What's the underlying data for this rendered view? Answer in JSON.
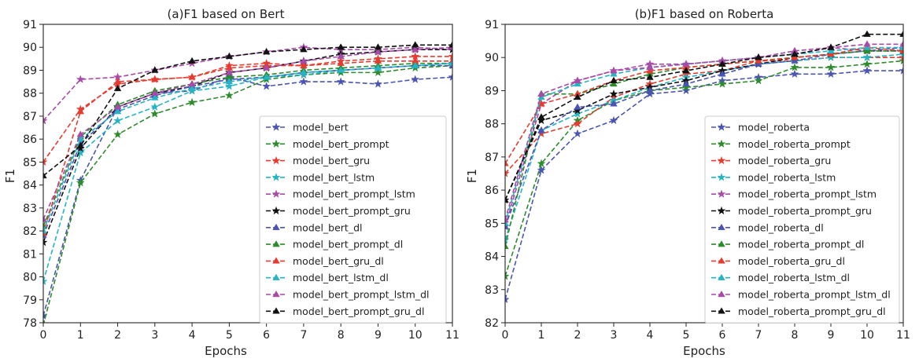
{
  "chart_data": [
    {
      "type": "line",
      "title": "(a)F1 based on Bert",
      "xlabel": "Epochs",
      "ylabel": "F1",
      "xlim": [
        0,
        11
      ],
      "ylim": [
        78,
        91
      ],
      "x": [
        0,
        1,
        2,
        3,
        4,
        5,
        6,
        7,
        8,
        9,
        10,
        11
      ],
      "xticks": [
        "0",
        "1",
        "2",
        "3",
        "4",
        "5",
        "6",
        "7",
        "8",
        "9",
        "10",
        "11"
      ],
      "yticks": [
        "78",
        "79",
        "80",
        "81",
        "82",
        "83",
        "84",
        "85",
        "86",
        "87",
        "88",
        "89",
        "90",
        "91"
      ],
      "grid": false,
      "legend_position": "lower-right",
      "series": [
        {
          "name": "model_bert",
          "color": "#4a54b4",
          "marker": "star",
          "values": [
            78.3,
            84.2,
            87.4,
            88.0,
            88.1,
            88.7,
            88.3,
            88.5,
            88.5,
            88.4,
            88.6,
            88.7
          ]
        },
        {
          "name": "model_bert_prompt",
          "color": "#2c8c2c",
          "marker": "star",
          "values": [
            77.9,
            84.1,
            86.2,
            87.1,
            87.6,
            87.9,
            88.6,
            88.8,
            88.9,
            88.9,
            89.1,
            89.2
          ]
        },
        {
          "name": "model_bert_gru",
          "color": "#e63b2e",
          "marker": "star",
          "values": [
            85.0,
            87.3,
            88.4,
            88.6,
            88.7,
            89.2,
            89.3,
            89.2,
            89.4,
            89.5,
            89.6,
            89.6
          ]
        },
        {
          "name": "model_bert_lstm",
          "color": "#26b4c4",
          "marker": "star",
          "values": [
            79.8,
            85.4,
            86.8,
            87.4,
            88.1,
            88.3,
            88.7,
            88.8,
            89.0,
            89.1,
            89.2,
            89.3
          ]
        },
        {
          "name": "model_bert_prompt_lstm",
          "color": "#a84aa8",
          "marker": "star",
          "values": [
            86.8,
            88.6,
            88.7,
            89.0,
            89.3,
            89.6,
            89.8,
            90.0,
            89.9,
            89.9,
            90.0,
            89.9
          ]
        },
        {
          "name": "model_bert_prompt_gru",
          "color": "#111111",
          "marker": "star",
          "values": [
            81.5,
            85.6,
            87.4,
            88.0,
            88.3,
            88.9,
            89.1,
            89.4,
            89.7,
            89.8,
            89.9,
            89.9
          ]
        },
        {
          "name": "model_bert_dl",
          "color": "#4a54b4",
          "marker": "triangle",
          "values": [
            81.8,
            85.8,
            87.3,
            87.9,
            88.3,
            88.6,
            88.7,
            88.9,
            89.0,
            89.1,
            89.2,
            89.2
          ]
        },
        {
          "name": "model_bert_prompt_dl",
          "color": "#2c8c2c",
          "marker": "triangle",
          "values": [
            82.2,
            86.1,
            87.5,
            88.1,
            88.4,
            88.7,
            88.8,
            89.0,
            89.1,
            89.2,
            89.3,
            89.3
          ]
        },
        {
          "name": "model_bert_gru_dl",
          "color": "#e63b2e",
          "marker": "triangle",
          "values": [
            81.9,
            87.2,
            88.5,
            88.6,
            88.7,
            89.1,
            89.2,
            89.2,
            89.3,
            89.4,
            89.4,
            89.4
          ]
        },
        {
          "name": "model_bert_lstm_dl",
          "color": "#26b4c4",
          "marker": "triangle",
          "values": [
            82.0,
            86.0,
            87.2,
            87.8,
            88.2,
            88.5,
            88.7,
            88.9,
            89.0,
            89.1,
            89.2,
            89.3
          ]
        },
        {
          "name": "model_bert_prompt_lstm_dl",
          "color": "#a84aa8",
          "marker": "triangle",
          "values": [
            82.5,
            86.2,
            87.4,
            88.0,
            88.4,
            88.9,
            89.1,
            89.4,
            89.6,
            89.8,
            89.9,
            90.0
          ]
        },
        {
          "name": "model_bert_prompt_gru_dl",
          "color": "#111111",
          "marker": "triangle",
          "values": [
            84.4,
            85.7,
            88.2,
            89.0,
            89.4,
            89.6,
            89.8,
            89.9,
            90.0,
            90.0,
            90.1,
            90.1
          ]
        }
      ]
    },
    {
      "type": "line",
      "title": "(b)F1 based on Roberta",
      "xlabel": "Epochs",
      "ylabel": "F1",
      "xlim": [
        0,
        11
      ],
      "ylim": [
        82,
        91
      ],
      "x": [
        0,
        1,
        2,
        3,
        4,
        5,
        6,
        7,
        8,
        9,
        10,
        11
      ],
      "xticks": [
        "0",
        "1",
        "2",
        "3",
        "4",
        "5",
        "6",
        "7",
        "8",
        "9",
        "10",
        "11"
      ],
      "yticks": [
        "82",
        "83",
        "84",
        "85",
        "86",
        "87",
        "88",
        "89",
        "90",
        "91"
      ],
      "grid": false,
      "legend_position": "lower-right",
      "series": [
        {
          "name": "model_roberta",
          "color": "#4a54b4",
          "marker": "star",
          "values": [
            82.7,
            86.6,
            87.7,
            88.1,
            88.9,
            89.0,
            89.3,
            89.4,
            89.5,
            89.5,
            89.6,
            89.6
          ]
        },
        {
          "name": "model_roberta_prompt",
          "color": "#2c8c2c",
          "marker": "star",
          "values": [
            83.4,
            86.8,
            88.1,
            88.7,
            89.0,
            89.1,
            89.2,
            89.3,
            89.7,
            89.7,
            89.8,
            89.9
          ]
        },
        {
          "name": "model_roberta_gru",
          "color": "#e63b2e",
          "marker": "star",
          "values": [
            86.5,
            87.7,
            88.0,
            88.8,
            89.2,
            89.5,
            89.6,
            89.9,
            89.9,
            90.0,
            90.0,
            90.0
          ]
        },
        {
          "name": "model_roberta_lstm",
          "color": "#26b4c4",
          "marker": "star",
          "values": [
            84.5,
            87.8,
            88.3,
            88.7,
            89.1,
            89.4,
            89.6,
            89.8,
            89.9,
            90.0,
            90.0,
            90.1
          ]
        },
        {
          "name": "model_roberta_prompt_lstm",
          "color": "#a84aa8",
          "marker": "star",
          "values": [
            84.9,
            88.6,
            89.3,
            89.6,
            89.8,
            89.8,
            89.9,
            90.0,
            90.1,
            90.3,
            90.2,
            90.2
          ]
        },
        {
          "name": "model_roberta_prompt_gru",
          "color": "#111111",
          "marker": "star",
          "values": [
            85.7,
            88.1,
            88.4,
            88.9,
            89.1,
            89.3,
            89.6,
            89.8,
            90.0,
            90.1,
            90.2,
            90.2
          ]
        },
        {
          "name": "model_roberta_dl",
          "color": "#4a54b4",
          "marker": "triangle",
          "values": [
            84.9,
            87.8,
            88.5,
            88.6,
            89.0,
            89.2,
            89.5,
            89.8,
            89.9,
            90.1,
            90.2,
            90.3
          ]
        },
        {
          "name": "model_roberta_prompt_dl",
          "color": "#2c8c2c",
          "marker": "triangle",
          "values": [
            84.3,
            88.9,
            88.9,
            89.2,
            89.5,
            89.7,
            89.8,
            89.9,
            90.0,
            90.1,
            90.2,
            90.2
          ]
        },
        {
          "name": "model_roberta_gru_dl",
          "color": "#e63b2e",
          "marker": "triangle",
          "values": [
            86.8,
            88.6,
            88.9,
            89.3,
            89.6,
            89.7,
            89.8,
            89.9,
            90.0,
            90.1,
            90.3,
            90.2
          ]
        },
        {
          "name": "model_roberta_lstm_dl",
          "color": "#26b4c4",
          "marker": "triangle",
          "values": [
            85.0,
            88.8,
            89.2,
            89.5,
            89.7,
            89.8,
            89.9,
            90.0,
            90.1,
            90.2,
            90.3,
            90.3
          ]
        },
        {
          "name": "model_roberta_prompt_lstm_dl",
          "color": "#a84aa8",
          "marker": "triangle",
          "values": [
            85.1,
            88.9,
            89.3,
            89.6,
            89.7,
            89.8,
            89.9,
            90.0,
            90.2,
            90.3,
            90.4,
            90.4
          ]
        },
        {
          "name": "model_roberta_prompt_gru_dl",
          "color": "#111111",
          "marker": "triangle",
          "values": [
            85.7,
            88.2,
            88.8,
            89.3,
            89.4,
            89.6,
            89.8,
            90.0,
            90.1,
            90.3,
            90.7,
            90.7
          ]
        }
      ]
    }
  ]
}
